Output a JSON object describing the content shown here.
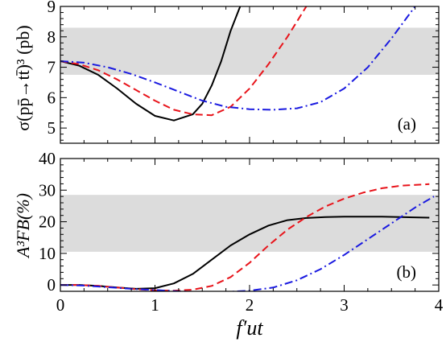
{
  "chart_data": [
    {
      "type": "line",
      "panel_label": "(a)",
      "ylabel": "σ(pp̄→tt̄)³ (pb)",
      "xlim": [
        0,
        4
      ],
      "ylim": [
        4.5,
        9
      ],
      "xticks": [
        0,
        1,
        2,
        3,
        4
      ],
      "yticks": [
        5,
        6,
        7,
        8,
        9
      ],
      "band": {
        "ymin": 6.75,
        "ymax": 8.3,
        "color": "#dcdcdc"
      },
      "series": [
        {
          "style": "solid",
          "color": "#000000",
          "x": [
            0,
            0.2,
            0.4,
            0.6,
            0.8,
            1.0,
            1.2,
            1.4,
            1.5,
            1.6,
            1.7,
            1.8,
            1.9
          ],
          "y": [
            7.2,
            7.05,
            6.75,
            6.3,
            5.8,
            5.4,
            5.25,
            5.45,
            5.8,
            6.4,
            7.2,
            8.2,
            9.0
          ]
        },
        {
          "style": "dashed",
          "color": "#e8141b",
          "x": [
            0,
            0.2,
            0.4,
            0.6,
            0.8,
            1.0,
            1.2,
            1.4,
            1.6,
            1.8,
            2.0,
            2.2,
            2.4,
            2.6
          ],
          "y": [
            7.2,
            7.1,
            6.9,
            6.6,
            6.25,
            5.9,
            5.6,
            5.45,
            5.42,
            5.7,
            6.3,
            7.1,
            8.0,
            9.0
          ]
        },
        {
          "style": "dashdot",
          "color": "#1a1ae0",
          "x": [
            0,
            0.25,
            0.5,
            0.75,
            1.0,
            1.25,
            1.5,
            1.75,
            2.0,
            2.25,
            2.5,
            2.75,
            3.0,
            3.25,
            3.5,
            3.75
          ],
          "y": [
            7.2,
            7.15,
            7.0,
            6.78,
            6.5,
            6.2,
            5.9,
            5.7,
            5.62,
            5.6,
            5.65,
            5.85,
            6.3,
            7.0,
            7.95,
            9.0
          ]
        }
      ]
    },
    {
      "type": "line",
      "panel_label": "(b)",
      "ylabel": "A³FB(%)",
      "xlabel": "f′ut",
      "xlim": [
        0,
        4
      ],
      "ylim": [
        -2,
        40
      ],
      "xticks": [
        0,
        1,
        2,
        3,
        4
      ],
      "yticks": [
        0,
        10,
        20,
        30,
        40
      ],
      "band": {
        "ymin": 10.5,
        "ymax": 28.5,
        "color": "#dcdcdc"
      },
      "series": [
        {
          "style": "solid",
          "color": "#000000",
          "x": [
            0,
            0.2,
            0.4,
            0.6,
            0.8,
            1.0,
            1.2,
            1.4,
            1.6,
            1.8,
            2.0,
            2.2,
            2.4,
            2.6,
            2.8,
            3.0,
            3.4,
            3.9
          ],
          "y": [
            0,
            0,
            -0.3,
            -0.8,
            -1.2,
            -1.0,
            0.5,
            3.5,
            8.0,
            12.5,
            16.0,
            18.8,
            20.5,
            21.2,
            21.5,
            21.6,
            21.6,
            21.3
          ]
        },
        {
          "style": "dashed",
          "color": "#e8141b",
          "x": [
            0,
            0.2,
            0.4,
            0.6,
            0.8,
            1.0,
            1.2,
            1.4,
            1.6,
            1.8,
            2.0,
            2.2,
            2.4,
            2.6,
            2.8,
            3.0,
            3.2,
            3.4,
            3.6,
            3.9
          ],
          "y": [
            0,
            0,
            -0.3,
            -0.8,
            -1.3,
            -1.7,
            -1.8,
            -1.5,
            -0.3,
            2.5,
            7.0,
            12.5,
            17.5,
            21.5,
            24.8,
            27.3,
            29.2,
            30.6,
            31.4,
            31.9
          ]
        },
        {
          "style": "dashdot",
          "color": "#1a1ae0",
          "x": [
            0,
            0.25,
            0.5,
            0.75,
            1.0,
            1.25,
            1.5,
            1.75,
            2.0,
            2.25,
            2.5,
            2.75,
            3.0,
            3.25,
            3.5,
            3.75,
            3.95
          ],
          "y": [
            0,
            -0.2,
            -0.7,
            -1.2,
            -1.6,
            -2.0,
            -2.2,
            -2.2,
            -1.8,
            -0.8,
            1.5,
            5.0,
            9.5,
            14.5,
            19.5,
            24.5,
            28.0
          ]
        }
      ]
    }
  ]
}
